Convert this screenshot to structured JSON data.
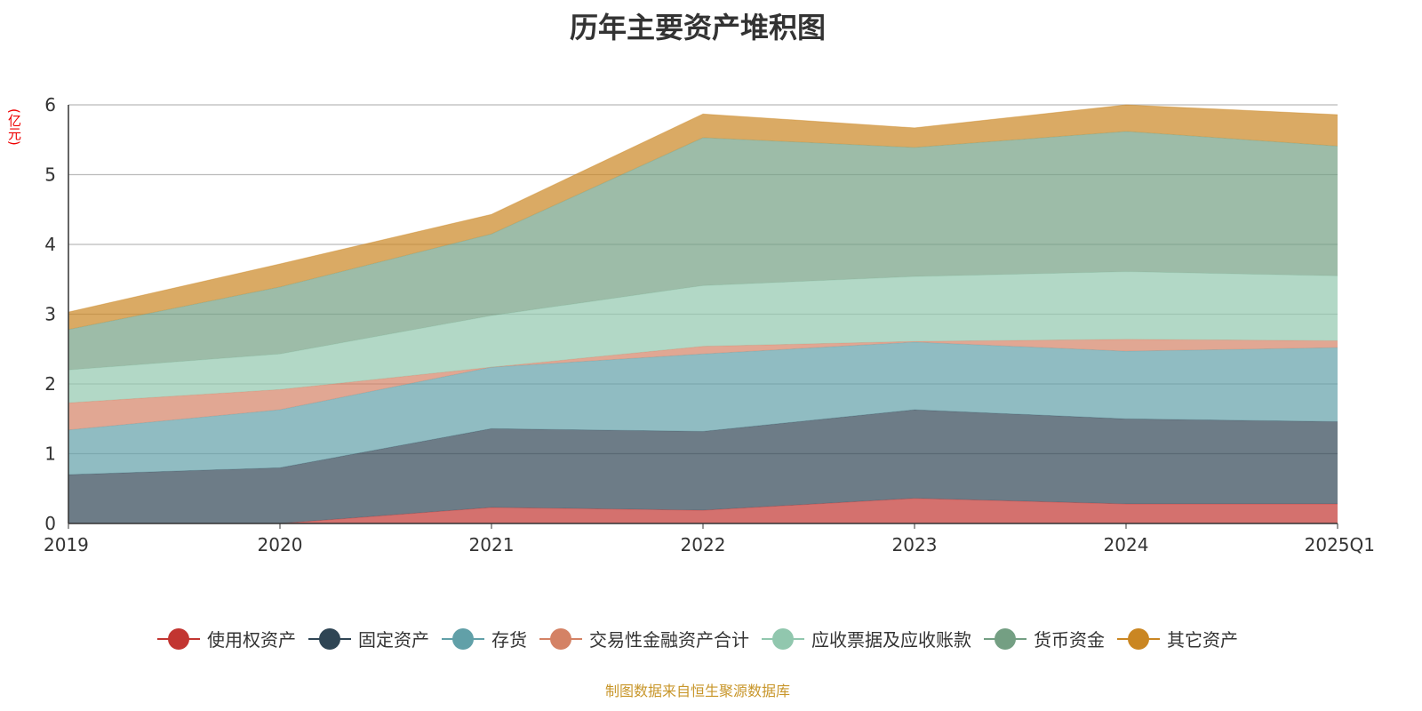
{
  "chart_data": {
    "type": "area",
    "stacked": true,
    "title": "历年主要资产堆积图",
    "ylabel": "(亿元)",
    "xlabel": "",
    "ylim": [
      0,
      6
    ],
    "yticks": [
      0,
      1,
      2,
      3,
      4,
      5,
      6
    ],
    "grid": true,
    "legend_position": "bottom",
    "categories": [
      "2019",
      "2020",
      "2021",
      "2022",
      "2023",
      "2024",
      "2025Q1"
    ],
    "series": [
      {
        "name": "使用权资产",
        "color": "#c23531",
        "values": [
          0,
          0,
          0.23,
          0.19,
          0.36,
          0.28,
          0.28
        ]
      },
      {
        "name": "固定资产",
        "color": "#2f4554",
        "values": [
          0.7,
          0.8,
          1.13,
          1.13,
          1.27,
          1.22,
          1.18
        ]
      },
      {
        "name": "存货",
        "color": "#61a0a8",
        "values": [
          0.64,
          0.83,
          0.88,
          1.11,
          0.97,
          0.97,
          1.06
        ]
      },
      {
        "name": "交易性金融资产合计",
        "color": "#d48265",
        "values": [
          0.39,
          0.29,
          0.0,
          0.11,
          0.01,
          0.17,
          0.1
        ]
      },
      {
        "name": "应收票据及应收账款",
        "color": "#91c7ae",
        "values": [
          0.47,
          0.51,
          0.74,
          0.87,
          0.93,
          0.97,
          0.93
        ]
      },
      {
        "name": "货币资金",
        "color": "#749f83",
        "values": [
          0.58,
          0.96,
          1.17,
          2.12,
          1.85,
          2.01,
          1.86
        ]
      },
      {
        "name": "其它资产",
        "color": "#ca8622",
        "values": [
          0.25,
          0.33,
          0.28,
          0.34,
          0.28,
          0.38,
          0.45
        ]
      }
    ]
  },
  "source": "制图数据来自恒生聚源数据库"
}
